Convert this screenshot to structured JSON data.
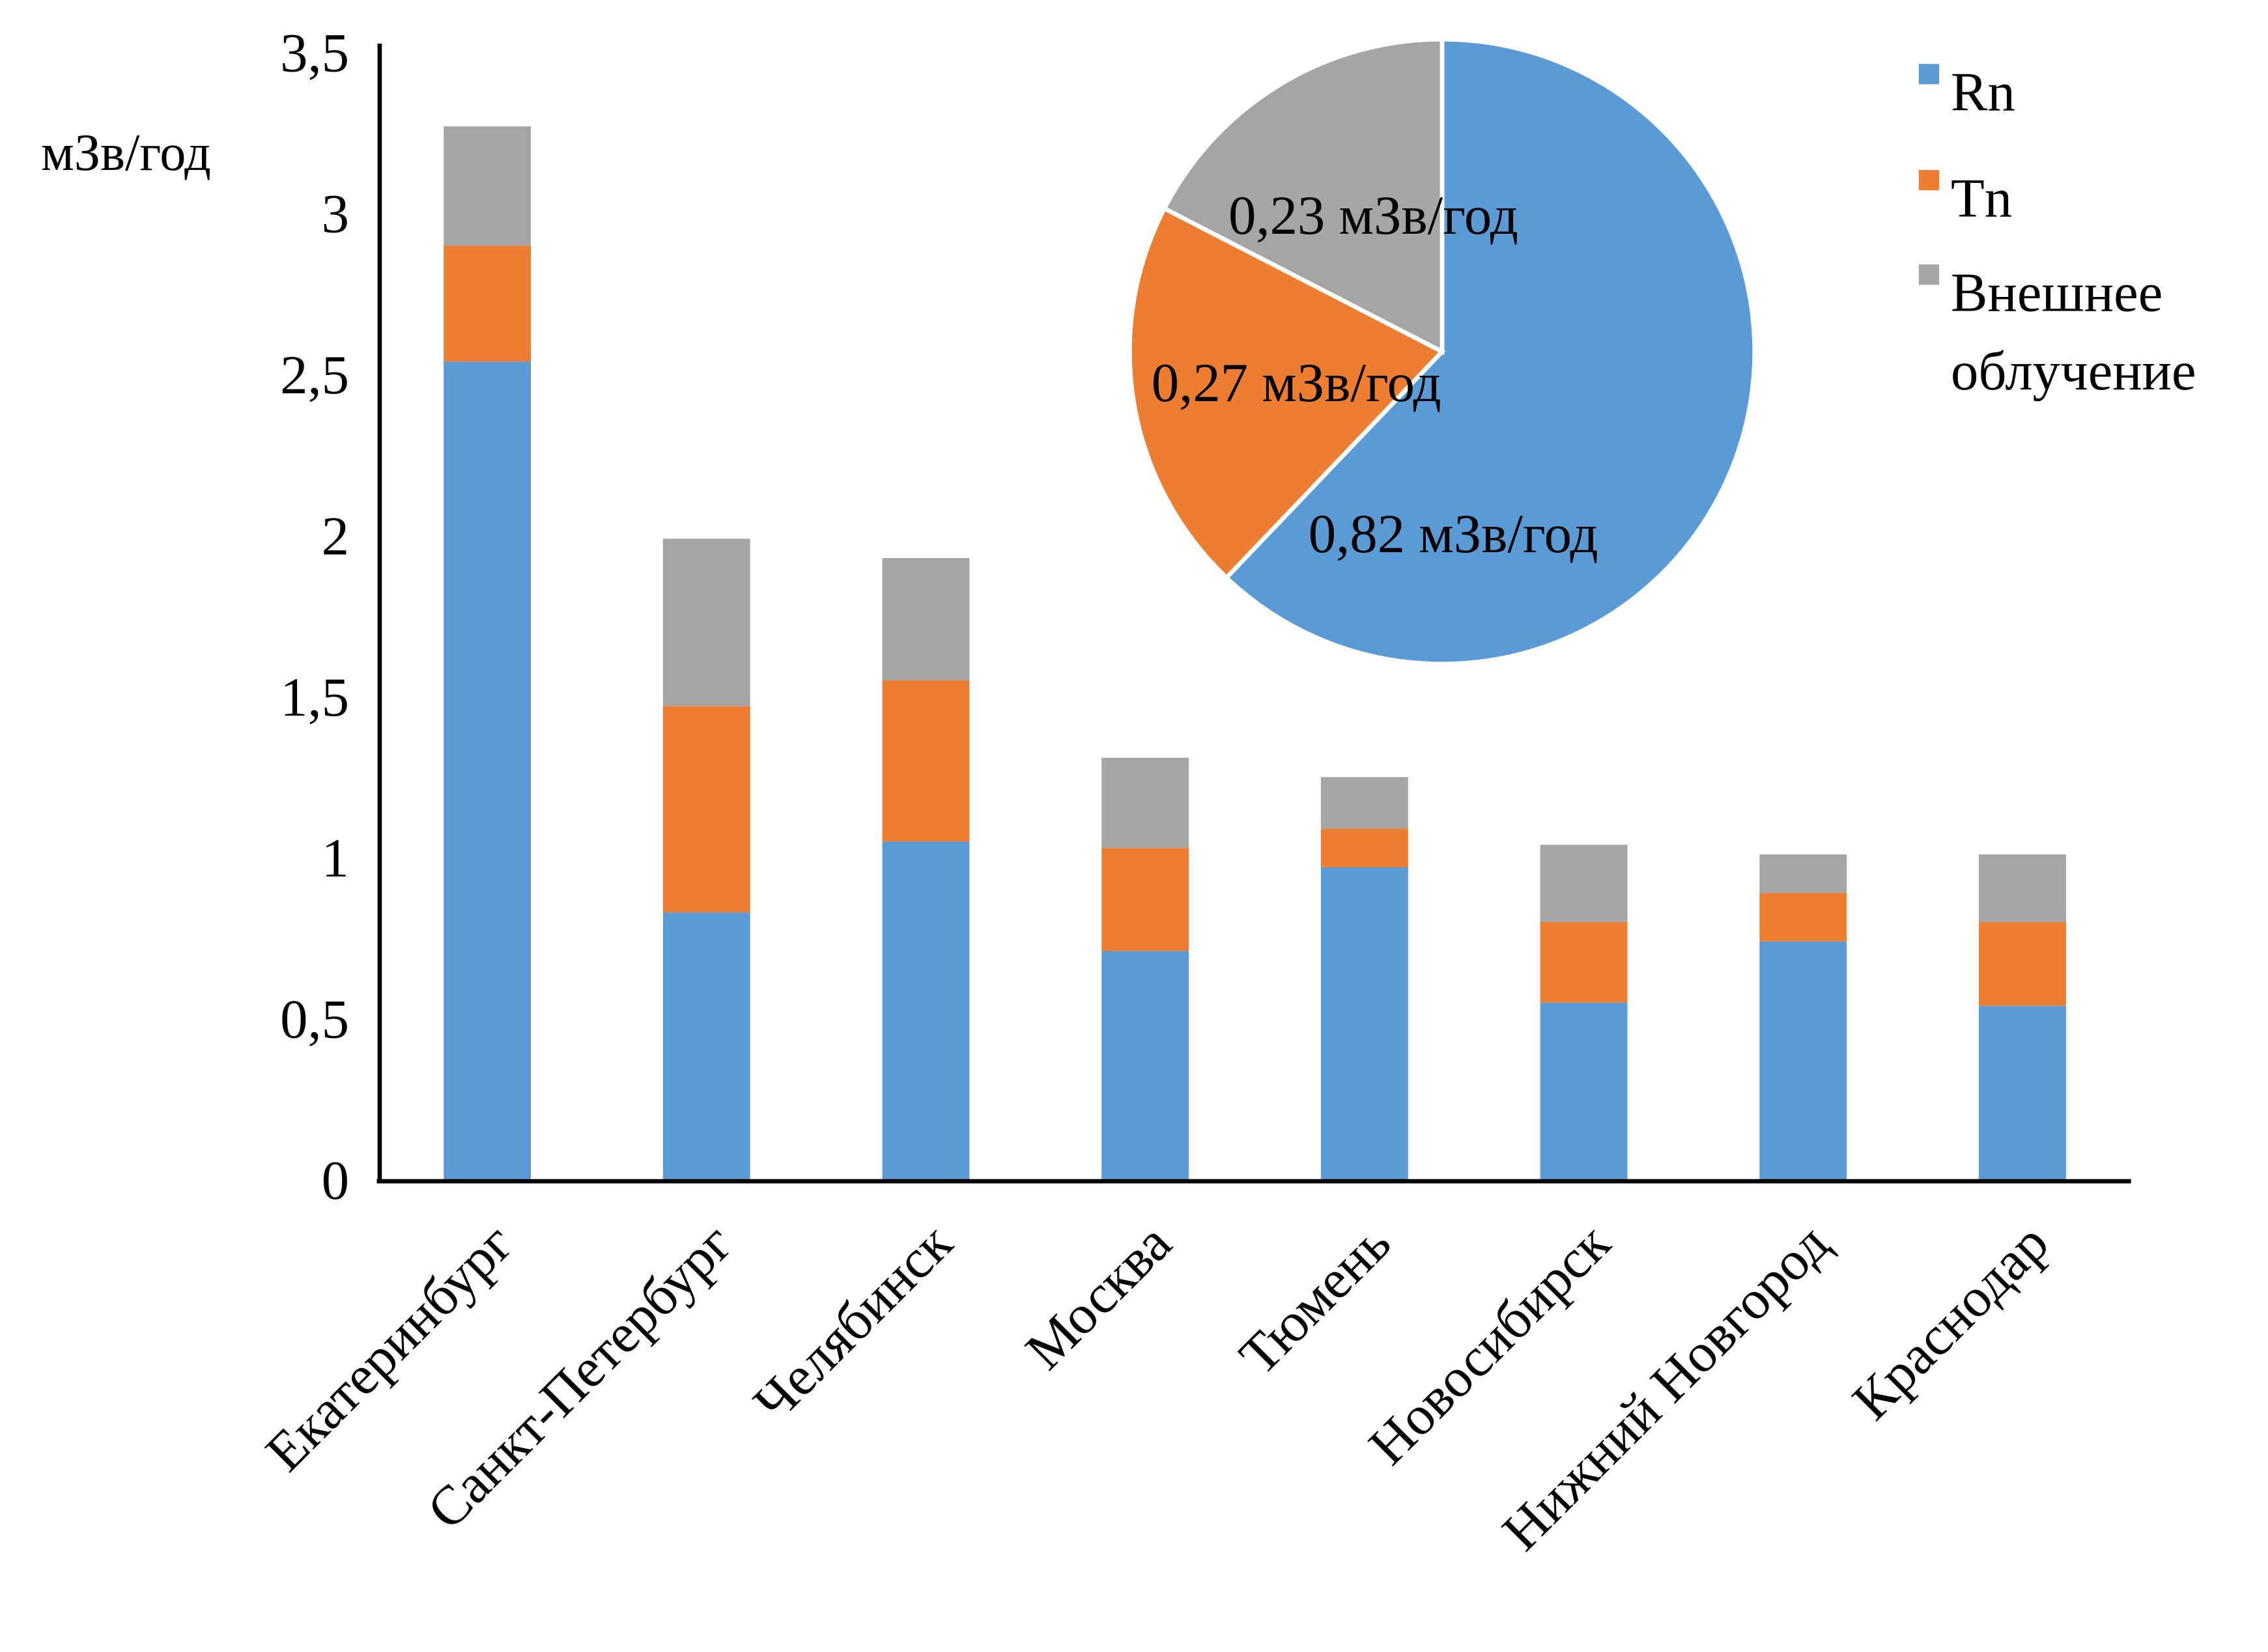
{
  "chart_data": [
    {
      "type": "bar",
      "stacked": true,
      "ylabel": "мЗв/год",
      "ylim": [
        0,
        3.5
      ],
      "yticks": [
        "0",
        "0,5",
        "1",
        "1,5",
        "2",
        "2,5",
        "3",
        "3,5"
      ],
      "ytick_values": [
        0,
        0.5,
        1,
        1.5,
        2,
        2.5,
        3,
        3.5
      ],
      "grid": false,
      "categories": [
        "Екатеринбург",
        "Санкт-Петербург",
        "Челябинск",
        "Москва",
        "Тюмень",
        "Новосибирск",
        "Нижний Новгород",
        "Краснодар"
      ],
      "series": [
        {
          "name": "Rn",
          "color": "#5b9bd5",
          "values": [
            2.54,
            0.83,
            1.05,
            0.71,
            0.97,
            0.55,
            0.74,
            0.54
          ]
        },
        {
          "name": "Tn",
          "color": "#ed7d31",
          "values": [
            0.36,
            0.64,
            0.5,
            0.32,
            0.12,
            0.25,
            0.15,
            0.26
          ]
        },
        {
          "name": "Внешнее облучение",
          "color": "#a5a5a5",
          "values": [
            0.37,
            0.52,
            0.38,
            0.28,
            0.16,
            0.24,
            0.12,
            0.21
          ]
        }
      ],
      "legend": {
        "position": "top-right",
        "items": [
          {
            "label": "Rn",
            "color": "#5b9bd5"
          },
          {
            "label": "Tn",
            "color": "#ed7d31"
          },
          {
            "label_line1": "Внешнее",
            "label_line2": "облучение",
            "color": "#a5a5a5"
          }
        ]
      }
    },
    {
      "type": "pie",
      "slices": [
        {
          "series": "Rn",
          "value": 0.82,
          "label": "0,82 мЗв/год",
          "color": "#5b9bd5"
        },
        {
          "series": "Tn",
          "value": 0.27,
          "label": "0,27 мЗв/год",
          "color": "#ed7d31"
        },
        {
          "series": "Внешнее облучение",
          "value": 0.23,
          "label": "0,23 мЗв/год",
          "color": "#a5a5a5"
        }
      ]
    }
  ]
}
